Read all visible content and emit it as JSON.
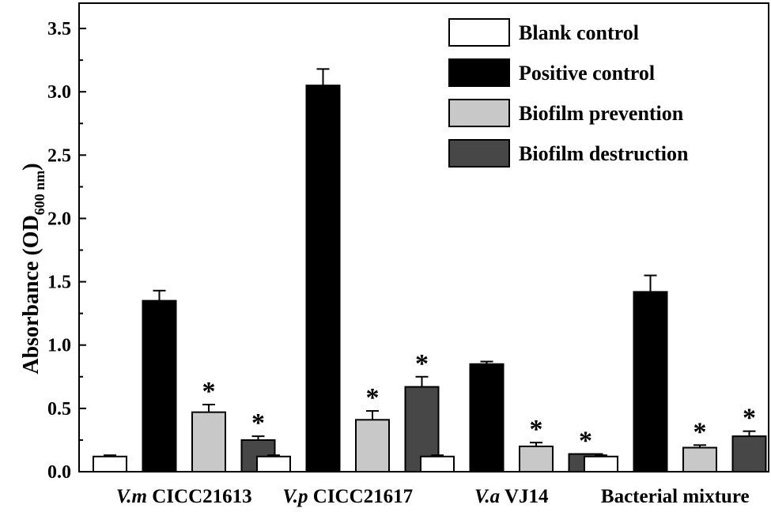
{
  "chart_data": {
    "type": "bar",
    "ylabel": "Absorbance (OD600 nm)",
    "ylabel_parts": {
      "main": "Absorbance (OD",
      "sub": "600 nm",
      "close": ")"
    },
    "ylim": [
      0,
      3.7
    ],
    "yticks": [
      "0.0",
      "0.5",
      "1.0",
      "1.5",
      "2.0",
      "2.5",
      "3.0",
      "3.5"
    ],
    "grid": false,
    "legend_position": "top-right",
    "categories": [
      {
        "italic": "V.m",
        "rest": " CICC21613"
      },
      {
        "italic": "V.p",
        "rest": " CICC21617"
      },
      {
        "italic": "V.a",
        "rest": " VJ14"
      },
      {
        "italic": "",
        "rest": "Bacterial mixture"
      }
    ],
    "series": [
      {
        "name": "Blank control",
        "color": "#ffffff",
        "values": [
          0.12,
          0.12,
          0.12,
          0.12
        ],
        "errors": [
          0.01,
          0.01,
          0.01,
          0.01
        ],
        "significant": [
          false,
          false,
          false,
          false
        ]
      },
      {
        "name": "Positive control",
        "color": "#000000",
        "values": [
          1.35,
          3.05,
          0.85,
          1.42
        ],
        "errors": [
          0.08,
          0.13,
          0.02,
          0.13
        ],
        "significant": [
          false,
          false,
          false,
          false
        ]
      },
      {
        "name": "Biofilm prevention",
        "color": "#c8c8c8",
        "values": [
          0.47,
          0.41,
          0.2,
          0.19
        ],
        "errors": [
          0.06,
          0.07,
          0.03,
          0.02
        ],
        "significant": [
          true,
          true,
          true,
          true
        ]
      },
      {
        "name": "Biofilm destruction",
        "color": "#474747",
        "values": [
          0.25,
          0.67,
          0.14,
          0.28
        ],
        "errors": [
          0.03,
          0.08,
          0.0,
          0.04
        ],
        "significant": [
          true,
          true,
          true,
          true
        ]
      }
    ],
    "significance_marker": "*"
  }
}
